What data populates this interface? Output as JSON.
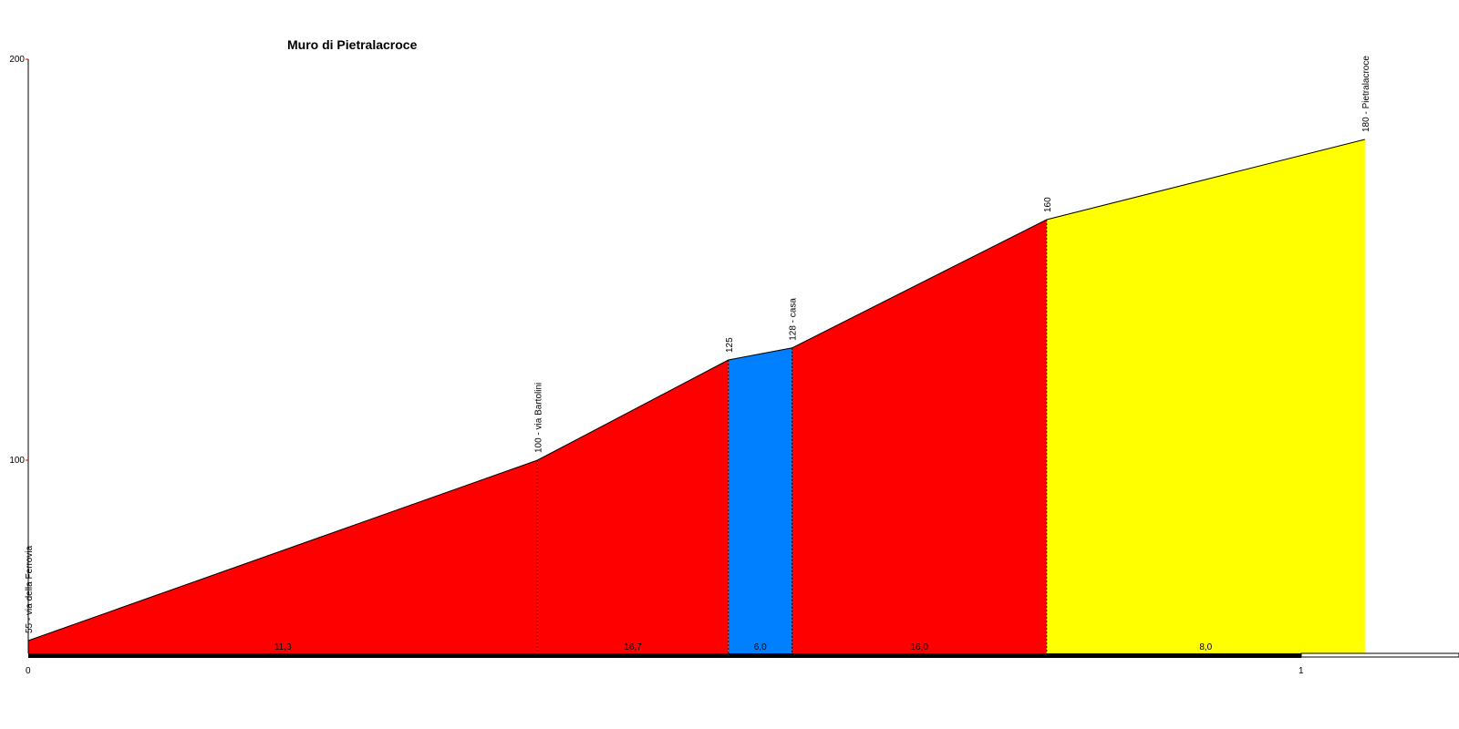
{
  "chart_data": {
    "type": "area",
    "title": "Muro di Pietralacroce",
    "xlabel": "",
    "ylabel": "",
    "xlim": [
      0,
      1.1
    ],
    "ylim": [
      55,
      200
    ],
    "x_ticks": [
      {
        "value": 0,
        "label": "0"
      },
      {
        "value": 1,
        "label": "1"
      }
    ],
    "y_ticks": [
      {
        "value": 100,
        "label": "100"
      },
      {
        "value": 200,
        "label": "200"
      }
    ],
    "points": [
      {
        "x": 0.0,
        "y": 55,
        "label": "55 - via della Ferrovia"
      },
      {
        "x": 0.4,
        "y": 100,
        "label": "100 - via Bartolini"
      },
      {
        "x": 0.55,
        "y": 125,
        "label": "125"
      },
      {
        "x": 0.6,
        "y": 128,
        "label": "128 - casa"
      },
      {
        "x": 0.8,
        "y": 160,
        "label": "160"
      },
      {
        "x": 1.05,
        "y": 180,
        "label": "180 - Pietralacroce"
      }
    ],
    "segments": [
      {
        "gradient": "11,3",
        "color": "#ff0000"
      },
      {
        "gradient": "16,7",
        "color": "#ff0000"
      },
      {
        "gradient": "6,0",
        "color": "#0080ff"
      },
      {
        "gradient": "16,0",
        "color": "#ff0000"
      },
      {
        "gradient": "8,0",
        "color": "#ffff00"
      }
    ],
    "grid": false,
    "legend": "none"
  }
}
